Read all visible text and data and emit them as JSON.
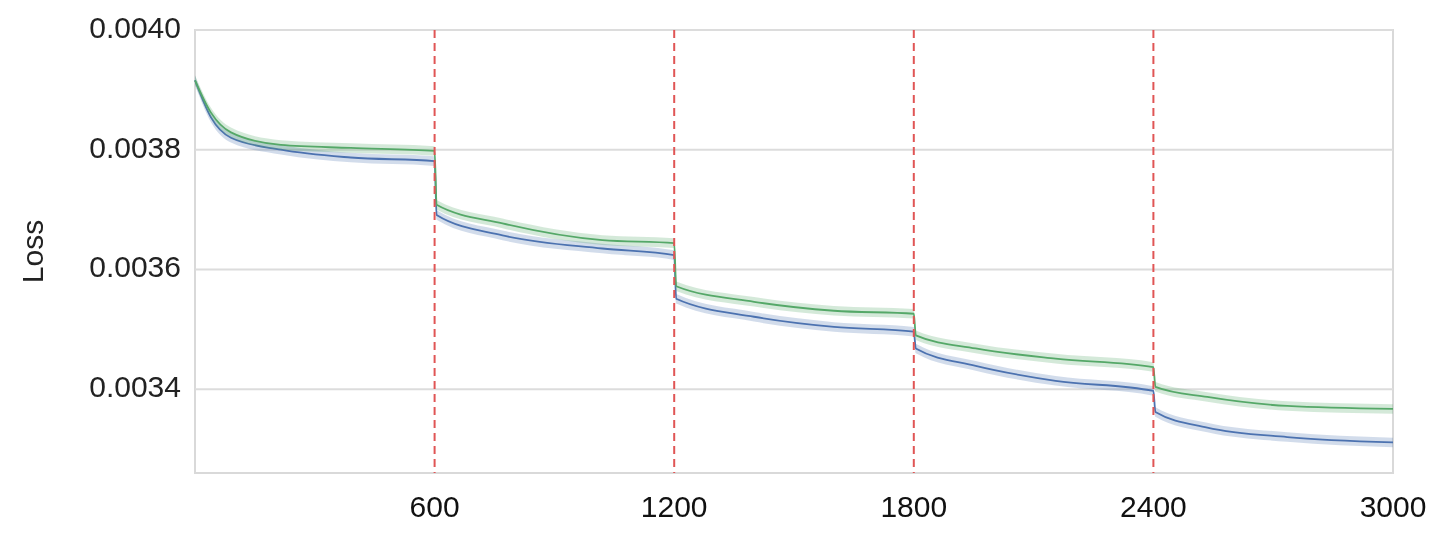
{
  "chart_data": {
    "type": "line",
    "ylabel": "Loss",
    "x": [
      0,
      40,
      90,
      215,
      390,
      600,
      605,
      770,
      1020,
      1200,
      1205,
      1400,
      1600,
      1800,
      1805,
      1955,
      2155,
      2400,
      2405,
      2535,
      2735,
      3000
    ],
    "xlim": [
      0,
      3000
    ],
    "xticks": [
      600,
      1200,
      1800,
      2400,
      3000
    ],
    "ylim": [
      0.00326,
      0.004
    ],
    "yticks": [
      {
        "value": 0.0034,
        "label": "0.0034"
      },
      {
        "value": 0.0036,
        "label": "0.0036"
      },
      {
        "value": 0.0038,
        "label": "0.0038"
      },
      {
        "value": 0.004,
        "label": "0.0040"
      }
    ],
    "grid": "y",
    "marker": "none",
    "line_style": "solid",
    "ref_lines": [
      {
        "axis": "x",
        "value": 600,
        "color": "#e05555",
        "line_style": "dashed"
      },
      {
        "axis": "x",
        "value": 1200,
        "color": "#e05555",
        "line_style": "dashed"
      },
      {
        "axis": "x",
        "value": 1800,
        "color": "#e05555",
        "line_style": "dashed"
      },
      {
        "axis": "x",
        "value": 2400,
        "color": "#e05555",
        "line_style": "dashed"
      }
    ],
    "series": [
      {
        "color": "#4c72b0",
        "values": [
          0.003916,
          0.003854,
          0.00382,
          0.0038,
          0.003787,
          0.003781,
          0.003691,
          0.003657,
          0.003635,
          0.003624,
          0.003551,
          0.003521,
          0.003504,
          0.003496,
          0.003468,
          0.003439,
          0.003414,
          0.003397,
          0.003362,
          0.003336,
          0.00332,
          0.003311
        ],
        "lower": [
          0.003908,
          0.003846,
          0.003812,
          0.003792,
          0.003779,
          0.003773,
          0.003683,
          0.003649,
          0.003627,
          0.003616,
          0.003543,
          0.003513,
          0.003496,
          0.003488,
          0.00346,
          0.003431,
          0.003406,
          0.003389,
          0.003354,
          0.003328,
          0.003312,
          0.003303
        ],
        "upper": [
          0.003924,
          0.003862,
          0.003828,
          0.003808,
          0.003795,
          0.003789,
          0.003699,
          0.003665,
          0.003643,
          0.003632,
          0.003559,
          0.003529,
          0.003512,
          0.003504,
          0.003476,
          0.003447,
          0.003422,
          0.003405,
          0.00337,
          0.003344,
          0.003328,
          0.003319
        ]
      },
      {
        "color": "#55a868",
        "values": [
          0.003916,
          0.003862,
          0.003829,
          0.003808,
          0.003803,
          0.003798,
          0.003708,
          0.003677,
          0.003649,
          0.003644,
          0.003572,
          0.003546,
          0.003531,
          0.003526,
          0.00349,
          0.003468,
          0.003451,
          0.003437,
          0.003404,
          0.003387,
          0.003372,
          0.003367
        ],
        "lower": [
          0.003908,
          0.003854,
          0.003821,
          0.0038,
          0.003795,
          0.00379,
          0.0037,
          0.003669,
          0.003641,
          0.003636,
          0.003564,
          0.003538,
          0.003523,
          0.003518,
          0.003482,
          0.00346,
          0.003443,
          0.003429,
          0.003396,
          0.003379,
          0.003364,
          0.003359
        ],
        "upper": [
          0.003924,
          0.00387,
          0.003837,
          0.003816,
          0.003811,
          0.003806,
          0.003716,
          0.003685,
          0.003657,
          0.003652,
          0.00358,
          0.003554,
          0.003539,
          0.003534,
          0.003498,
          0.003476,
          0.003459,
          0.003445,
          0.003412,
          0.003395,
          0.00338,
          0.003375
        ]
      }
    ]
  }
}
